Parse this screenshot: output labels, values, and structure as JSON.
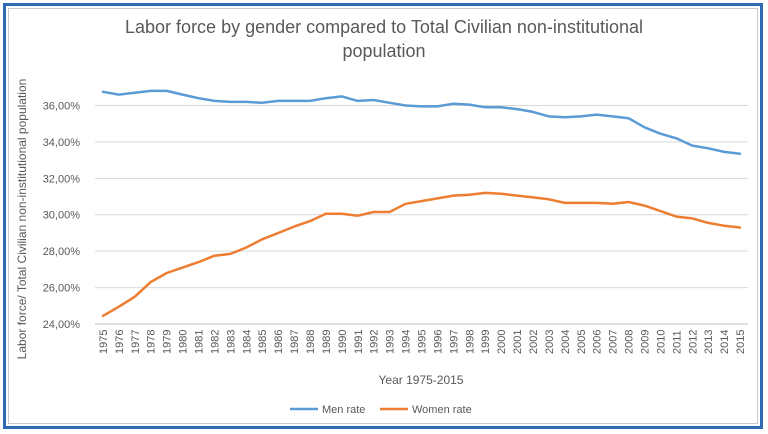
{
  "chart_data": {
    "type": "line",
    "title_line1": "Labor force by gender compared to Total Civilian non-institutional",
    "title_line2": "population",
    "xlabel": "Year 1975-2015",
    "ylabel": "Labor force/ Total Civilian non-institutional population",
    "ylim": [
      24,
      37.4
    ],
    "yticks": [
      "24,00%",
      "26,00%",
      "28,00%",
      "30,00%",
      "32,00%",
      "34,00%",
      "36,00%"
    ],
    "ytick_values": [
      24,
      26,
      28,
      30,
      32,
      34,
      36
    ],
    "grid": true,
    "legend_position": "bottom",
    "categories": [
      "1975",
      "1976",
      "1977",
      "1978",
      "1979",
      "1980",
      "1981",
      "1982",
      "1983",
      "1984",
      "1985",
      "1986",
      "1987",
      "1988",
      "1989",
      "1990",
      "1991",
      "1992",
      "1993",
      "1994",
      "1995",
      "1996",
      "1997",
      "1998",
      "1999",
      "2000",
      "2001",
      "2002",
      "2003",
      "2004",
      "2005",
      "2006",
      "2007",
      "2008",
      "2009",
      "2010",
      "2011",
      "2012",
      "2013",
      "2014",
      "2015"
    ],
    "series": [
      {
        "name": "Men rate",
        "color": "#5b9bd5",
        "values": [
          36.75,
          36.6,
          36.7,
          36.8,
          36.8,
          36.6,
          36.4,
          36.25,
          36.2,
          36.2,
          36.15,
          36.25,
          36.25,
          36.25,
          36.4,
          36.5,
          36.25,
          36.3,
          36.15,
          36.0,
          35.95,
          35.95,
          36.1,
          36.05,
          35.9,
          35.9,
          35.8,
          35.65,
          35.4,
          35.35,
          35.4,
          35.5,
          35.4,
          35.3,
          34.8,
          34.45,
          34.2,
          33.8,
          33.65,
          33.45,
          33.35
        ]
      },
      {
        "name": "Women rate",
        "color": "#ed7d31",
        "values": [
          24.45,
          24.95,
          25.5,
          26.3,
          26.8,
          27.1,
          27.4,
          27.75,
          27.85,
          28.2,
          28.65,
          29.0,
          29.35,
          29.65,
          30.05,
          30.05,
          29.95,
          30.15,
          30.15,
          30.6,
          30.75,
          30.9,
          31.05,
          31.1,
          31.2,
          31.15,
          31.05,
          30.95,
          30.85,
          30.65,
          30.65,
          30.65,
          30.6,
          30.7,
          30.5,
          30.2,
          29.9,
          29.8,
          29.55,
          29.4,
          29.3
        ]
      }
    ]
  }
}
